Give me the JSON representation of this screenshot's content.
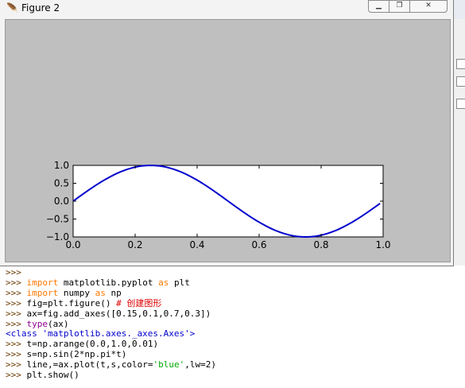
{
  "window": {
    "title": "Figure 2",
    "controls": {
      "minimize": "▁",
      "maximize": "❐",
      "close": "✕"
    }
  },
  "chart_data": {
    "type": "line",
    "title": "",
    "xlabel": "",
    "ylabel": "",
    "xlim": [
      0.0,
      1.0
    ],
    "ylim": [
      -1.0,
      1.0
    ],
    "xticks": [
      "0.0",
      "0.2",
      "0.4",
      "0.6",
      "0.8",
      "1.0"
    ],
    "yticks": [
      "1.0",
      "0.5",
      "0.0",
      "−0.5",
      "−1.0"
    ],
    "series": [
      {
        "name": "sin(2πt)",
        "color": "#0000cc",
        "function": "sin(2*pi*t)",
        "t_start": 0.0,
        "t_stop": 1.0,
        "t_step": 0.01
      }
    ],
    "grid": false
  },
  "shell": {
    "prompt": ">>>",
    "lines": [
      {
        "tokens": []
      },
      {
        "tokens": [
          [
            "kw",
            "import"
          ],
          [
            "tx",
            " matplotlib.pyplot "
          ],
          [
            "kw",
            "as"
          ],
          [
            "tx",
            " plt"
          ]
        ]
      },
      {
        "tokens": [
          [
            "kw",
            "import"
          ],
          [
            "tx",
            " numpy "
          ],
          [
            "kw",
            "as"
          ],
          [
            "tx",
            " np"
          ]
        ]
      },
      {
        "tokens": [
          [
            "tx",
            "fig=plt.figure() "
          ],
          [
            "cm",
            "# 创建图形"
          ]
        ]
      },
      {
        "tokens": [
          [
            "tx",
            "ax=fig.add_axes([0.15,0.1,0.7,0.3])"
          ]
        ]
      },
      {
        "tokens": [
          [
            "bi",
            "type"
          ],
          [
            "tx",
            "(ax)"
          ]
        ]
      },
      {
        "output": "<class 'matplotlib.axes._axes.Axes'>"
      },
      {
        "tokens": [
          [
            "tx",
            "t=np.arange(0.0,1.0,0.01)"
          ]
        ]
      },
      {
        "tokens": [
          [
            "tx",
            "s=np.sin(2*np.pi*t)"
          ]
        ]
      },
      {
        "tokens": [
          [
            "tx",
            "line,=ax.plot(t,s,color="
          ],
          [
            "st",
            "'blue'"
          ],
          [
            "tx",
            ",lw=2)"
          ]
        ]
      },
      {
        "tokens": [
          [
            "tx",
            "plt.show()"
          ]
        ]
      }
    ]
  }
}
